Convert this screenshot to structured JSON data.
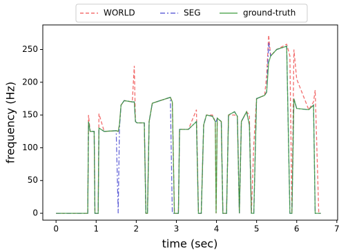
{
  "chart_data": {
    "type": "line",
    "xlabel": "time (sec)",
    "ylabel": "frequency (Hz)",
    "x": [
      0,
      0.79,
      0.81,
      0.85,
      0.95,
      0.97,
      1.05,
      1.07,
      1.2,
      1.5,
      1.55,
      1.58,
      1.62,
      1.7,
      1.9,
      1.95,
      1.98,
      2.02,
      2.2,
      2.24,
      2.28,
      2.32,
      2.4,
      2.6,
      2.85,
      2.9,
      2.95,
      3.05,
      3.08,
      3.3,
      3.5,
      3.55,
      3.62,
      3.68,
      3.75,
      3.9,
      3.97,
      3.99,
      4.02,
      4.12,
      4.16,
      4.25,
      4.3,
      4.45,
      4.52,
      4.57,
      4.62,
      4.75,
      4.82,
      4.87,
      4.93,
      5.0,
      5.2,
      5.25,
      5.3,
      5.35,
      5.5,
      5.75,
      5.83,
      5.88,
      5.93,
      6.0,
      6.3,
      6.42,
      6.46,
      6.55,
      6.6
    ],
    "series": [
      {
        "name": "WORLD",
        "color": "#f05050",
        "dash": "dashed",
        "values": [
          0,
          0,
          150,
          125,
          125,
          0,
          0,
          152,
          125,
          126,
          125,
          135,
          165,
          172,
          170,
          225,
          140,
          138,
          138,
          0,
          0,
          140,
          168,
          172,
          177,
          170,
          0,
          0,
          128,
          128,
          158,
          0,
          0,
          135,
          150,
          150,
          140,
          0,
          145,
          140,
          0,
          0,
          150,
          150,
          148,
          0,
          140,
          155,
          150,
          0,
          105,
          175,
          180,
          210,
          272,
          240,
          250,
          258,
          240,
          0,
          250,
          205,
          158,
          170,
          188,
          0,
          0
        ]
      },
      {
        "name": "SEG",
        "color": "#4848d0",
        "dash": "dashdot",
        "values": [
          0,
          0,
          140,
          125,
          125,
          0,
          0,
          130,
          125,
          126,
          0,
          130,
          165,
          172,
          170,
          170,
          140,
          138,
          138,
          0,
          0,
          140,
          168,
          172,
          177,
          0,
          0,
          0,
          128,
          128,
          140,
          0,
          0,
          135,
          150,
          148,
          140,
          140,
          145,
          140,
          0,
          0,
          150,
          155,
          148,
          0,
          140,
          155,
          135,
          0,
          0,
          175,
          180,
          185,
          260,
          240,
          250,
          255,
          0,
          0,
          175,
          160,
          158,
          165,
          0,
          0,
          0
        ]
      },
      {
        "name": "ground-truth",
        "color": "#3a9a3a",
        "dash": "solid",
        "values": [
          0,
          0,
          140,
          125,
          125,
          0,
          0,
          130,
          125,
          126,
          125,
          135,
          165,
          172,
          170,
          170,
          140,
          138,
          138,
          0,
          0,
          140,
          168,
          172,
          177,
          170,
          0,
          0,
          128,
          128,
          140,
          0,
          0,
          135,
          150,
          148,
          140,
          0,
          145,
          140,
          0,
          0,
          150,
          155,
          148,
          0,
          140,
          155,
          135,
          0,
          0,
          175,
          180,
          185,
          230,
          240,
          250,
          255,
          0,
          0,
          175,
          160,
          158,
          165,
          0,
          0,
          0
        ]
      }
    ],
    "xlim": [
      -0.33,
      7.02
    ],
    "xticks": [
      0,
      1,
      2,
      3,
      4,
      5,
      6,
      7
    ],
    "ylim": [
      -10.5,
      287.5
    ],
    "yticks": [
      0,
      50,
      100,
      150,
      200,
      250
    ],
    "legend": "upper center"
  }
}
